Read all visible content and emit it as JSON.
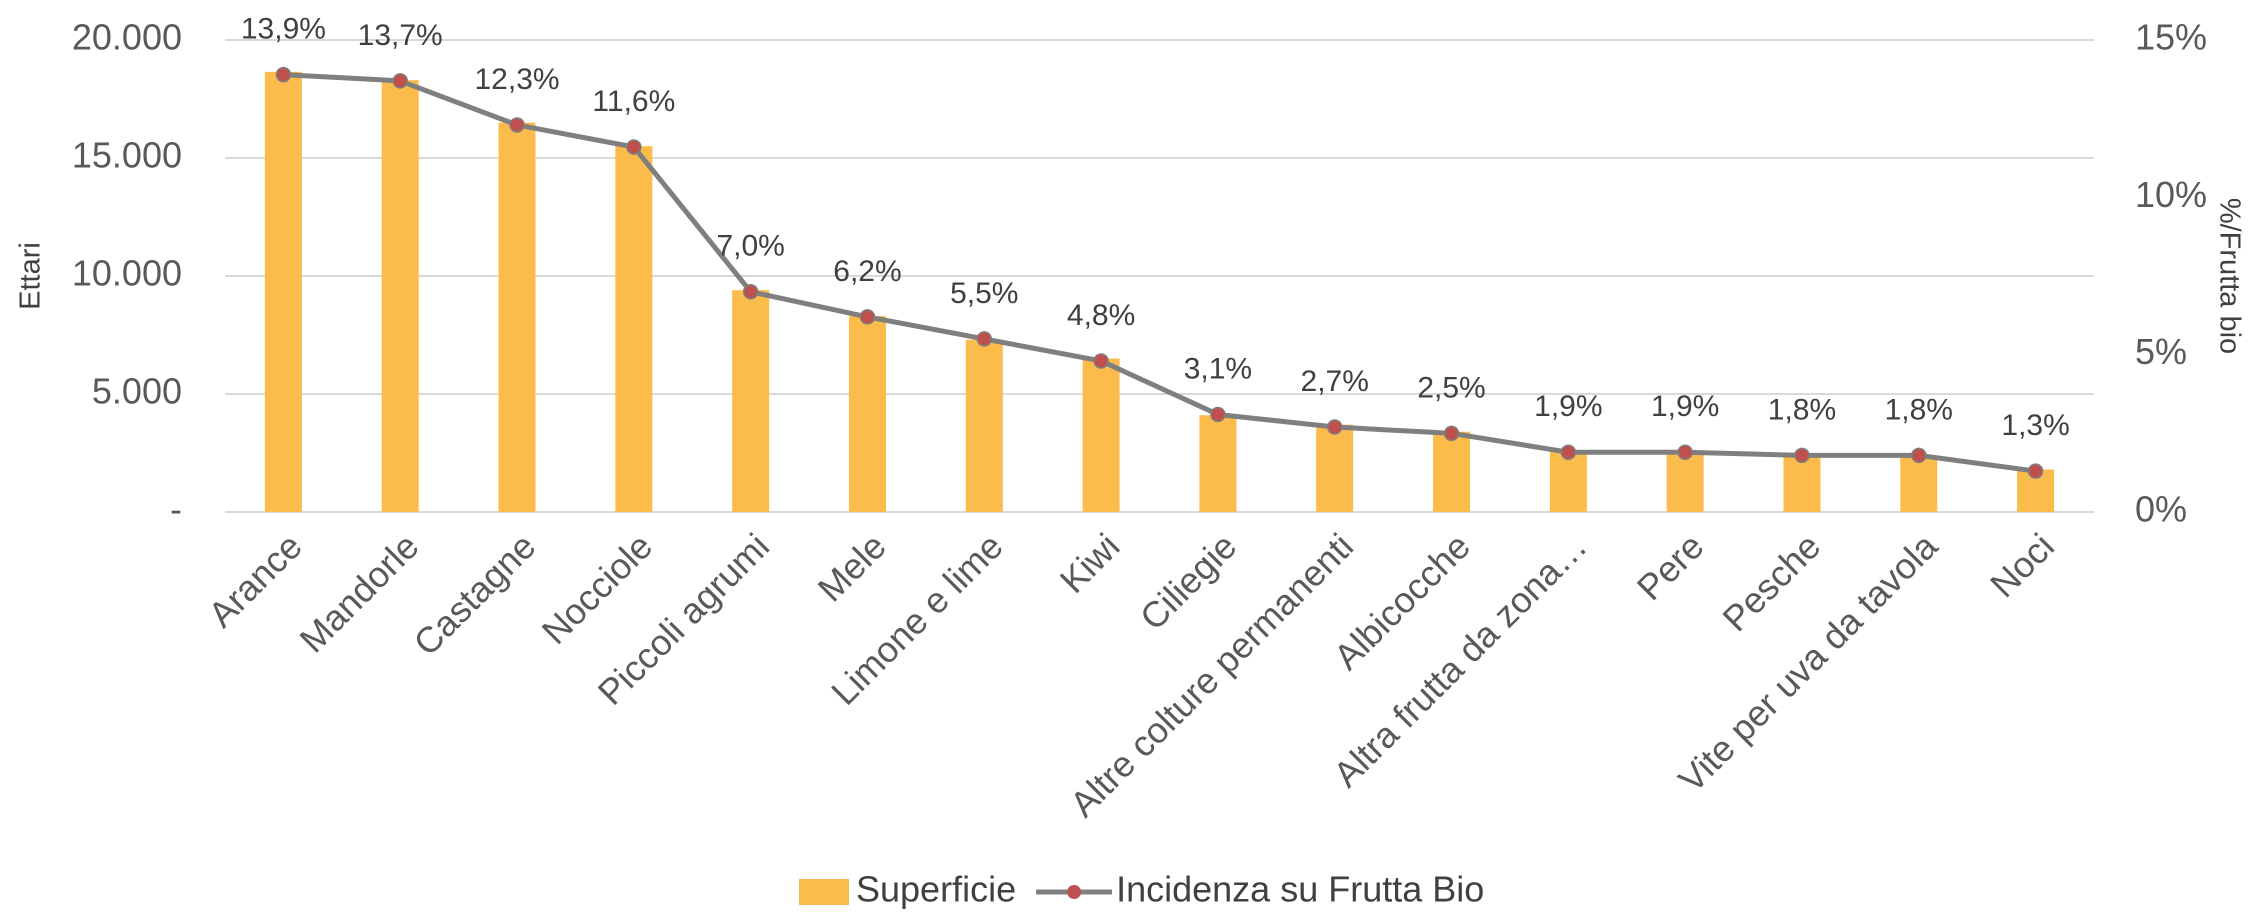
{
  "chart_data": {
    "type": "bar_line",
    "y_label": "Ettari",
    "y2_label": "%/Frutta bio",
    "categories": [
      "Arance",
      "Mandorle",
      "Castagne",
      "Nocciole",
      "Piccoli agrumi",
      "Mele",
      "Limone e lime",
      "Kiwi",
      "Ciliegie",
      "Altre colture permanenti",
      "Albicocche",
      "Altra frutta da zona…",
      "Pere",
      "Pesche",
      "Vite per uva da tavola",
      "Noci"
    ],
    "series": [
      {
        "name": "Superficie",
        "type": "bar",
        "color": "#fbbc4b",
        "values": [
          18650,
          18300,
          16500,
          15500,
          9400,
          8300,
          7300,
          6500,
          4100,
          3700,
          3400,
          2600,
          2500,
          2500,
          2400,
          1800
        ]
      },
      {
        "name": "Incidenza su Frutta Bio",
        "type": "line",
        "axis": "y2",
        "color": "#7f7f7f",
        "marker_color": "#c0504d",
        "values": [
          13.9,
          13.7,
          12.3,
          11.6,
          7.0,
          6.2,
          5.5,
          4.8,
          3.1,
          2.7,
          2.5,
          1.9,
          1.9,
          1.8,
          1.8,
          1.3
        ],
        "value_labels": [
          "13,9%",
          "13,7%",
          "12,3%",
          "11,6%",
          "7,0%",
          "6,2%",
          "5,5%",
          "4,8%",
          "3,1%",
          "2,7%",
          "2,5%",
          "1,9%",
          "1,9%",
          "1,8%",
          "1,8%",
          "1,3%"
        ]
      }
    ],
    "ylim": [
      0,
      20000
    ],
    "yticks": [
      {
        "value": 0,
        "label": "-"
      },
      {
        "value": 5000,
        "label": "5.000"
      },
      {
        "value": 10000,
        "label": "10.000"
      },
      {
        "value": 15000,
        "label": "15.000"
      },
      {
        "value": 20000,
        "label": "20.000"
      }
    ],
    "y2lim": [
      0,
      15
    ],
    "y2ticks": [
      {
        "value": 0,
        "label": "0%"
      },
      {
        "value": 5,
        "label": "5%"
      },
      {
        "value": 10,
        "label": "10%"
      },
      {
        "value": 15,
        "label": "15%"
      }
    ],
    "grid": true,
    "legend": "bottom"
  }
}
